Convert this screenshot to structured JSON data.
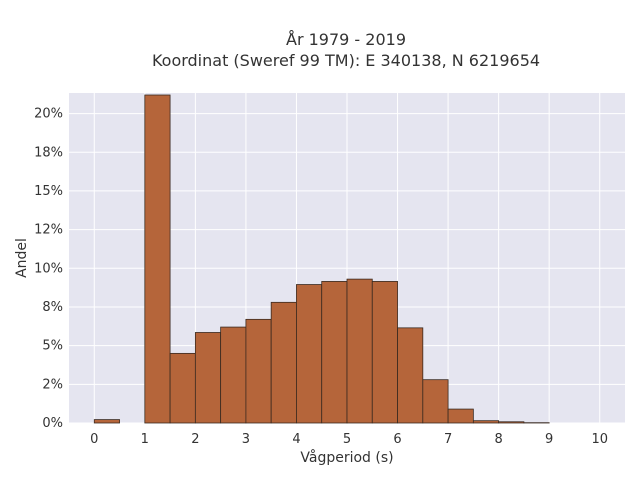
{
  "chart_data": {
    "type": "bar",
    "title_lines": [
      "År 1979 - 2019",
      "Koordinat (Sweref 99 TM): E 340138, N 6219654"
    ],
    "xlabel": "Vågperiod (s)",
    "ylabel": "Andel",
    "xlim": [
      -0.5,
      10.5
    ],
    "ylim": [
      0,
      0.2133
    ],
    "x_ticks": [
      0,
      1,
      2,
      3,
      4,
      5,
      6,
      7,
      8,
      9,
      10
    ],
    "y_ticks": [
      {
        "value": 0.0,
        "label": "0%"
      },
      {
        "value": 0.025,
        "label": "2%"
      },
      {
        "value": 0.05,
        "label": "5%"
      },
      {
        "value": 0.075,
        "label": "8%"
      },
      {
        "value": 0.1,
        "label": "10%"
      },
      {
        "value": 0.125,
        "label": "12%"
      },
      {
        "value": 0.15,
        "label": "15%"
      },
      {
        "value": 0.175,
        "label": "18%"
      },
      {
        "value": 0.2,
        "label": "20%"
      }
    ],
    "grid": true,
    "bar_color": "#b5653a",
    "bar_edge_color": "#3a2a20",
    "bins": [
      {
        "start": 0.0,
        "end": 0.5,
        "value": 0.0022
      },
      {
        "start": 1.0,
        "end": 1.5,
        "value": 0.212
      },
      {
        "start": 1.5,
        "end": 2.0,
        "value": 0.045
      },
      {
        "start": 2.0,
        "end": 2.5,
        "value": 0.0585
      },
      {
        "start": 2.5,
        "end": 3.0,
        "value": 0.062
      },
      {
        "start": 3.0,
        "end": 3.5,
        "value": 0.067
      },
      {
        "start": 3.5,
        "end": 4.0,
        "value": 0.078
      },
      {
        "start": 4.0,
        "end": 4.5,
        "value": 0.0895
      },
      {
        "start": 4.5,
        "end": 5.0,
        "value": 0.0915
      },
      {
        "start": 5.0,
        "end": 5.5,
        "value": 0.093
      },
      {
        "start": 5.5,
        "end": 6.0,
        "value": 0.0915
      },
      {
        "start": 6.0,
        "end": 6.5,
        "value": 0.0615
      },
      {
        "start": 6.5,
        "end": 7.0,
        "value": 0.028
      },
      {
        "start": 7.0,
        "end": 7.5,
        "value": 0.009
      },
      {
        "start": 7.5,
        "end": 8.0,
        "value": 0.0015
      },
      {
        "start": 8.0,
        "end": 8.5,
        "value": 0.0008
      },
      {
        "start": 8.5,
        "end": 9.0,
        "value": 0.0002
      }
    ]
  }
}
